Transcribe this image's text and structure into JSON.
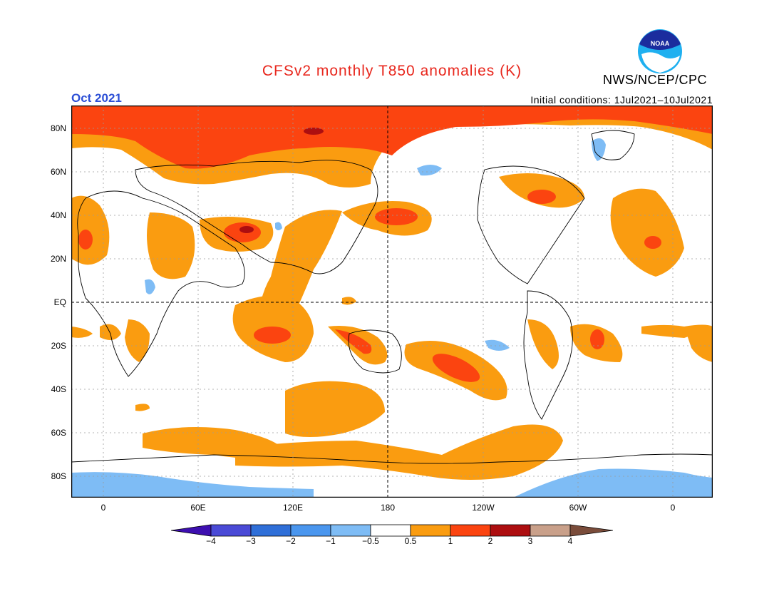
{
  "header": {
    "title": "CFSv2 monthly T850 anomalies (K)",
    "month": "Oct 2021",
    "initial_conditions": "Initial conditions: 1Jul2021–10Jul2021",
    "agency": "NWS/NCEP/CPC",
    "logo_text": "NOAA"
  },
  "map": {
    "projection": "cylindrical equidistant, centered on 180",
    "y_axis_labels": [
      "80N",
      "60N",
      "40N",
      "20N",
      "EQ",
      "20S",
      "40S",
      "60S",
      "80S"
    ],
    "x_axis_labels": [
      "0",
      "60E",
      "120E",
      "180",
      "120W",
      "60W",
      "0"
    ],
    "reference_lines": [
      "EQ dashed",
      "180 dashed"
    ]
  },
  "colorbar": {
    "labels": [
      "−4",
      "−3",
      "−2",
      "−1",
      "−0.5",
      "0.5",
      "1",
      "2",
      "3",
      "4"
    ],
    "colors": [
      "#3d0fb0",
      "#4a4ad6",
      "#2f6fd8",
      "#4a96ee",
      "#7ebcf5",
      "#ffffff",
      "#fa9c10",
      "#fb4410",
      "#ad0e10",
      "#c9a08a",
      "#7a4c3a"
    ]
  },
  "colors": {
    "warm_05_1": "#fa9c10",
    "warm_1_2": "#fb4410",
    "warm_2_3": "#ad0e10",
    "cool_05_1": "#7ebcf5",
    "title_red": "#e8271d",
    "month_blue": "#2c4fd6"
  }
}
